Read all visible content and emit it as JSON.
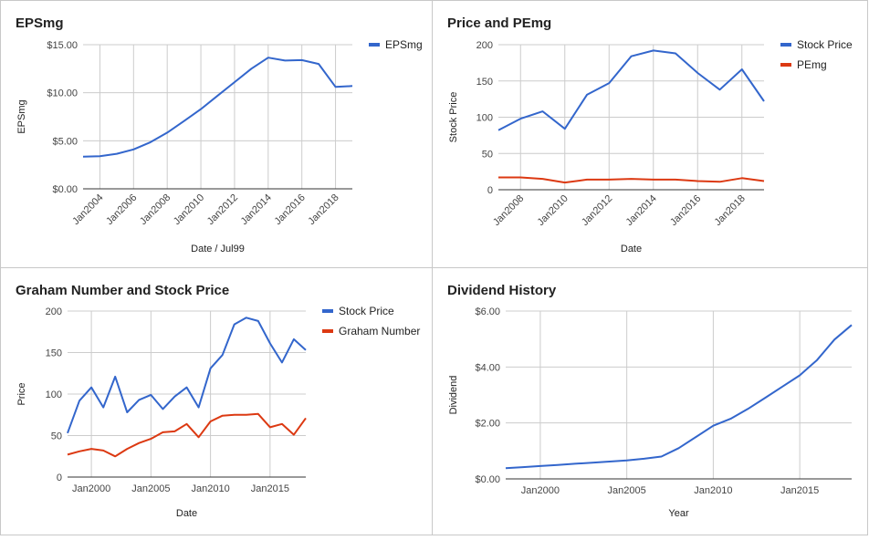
{
  "charts": [
    {
      "id": "p1",
      "type": "line",
      "title": "EPSmg",
      "xlabel": "Date / Jul99",
      "ylabel": "EPSmg",
      "x": [
        2003,
        2004,
        2005,
        2006,
        2007,
        2008,
        2009,
        2010,
        2011,
        2012,
        2013,
        2014,
        2015,
        2016,
        2017,
        2018,
        2019
      ],
      "series": [
        {
          "name": "EPSmg",
          "color": "#3366cc",
          "values": [
            3.35,
            3.4,
            3.65,
            4.1,
            4.85,
            5.85,
            7.05,
            8.3,
            9.7,
            11.1,
            12.5,
            13.65,
            13.35,
            13.4,
            13.0,
            10.6,
            10.7
          ]
        }
      ],
      "xlim": [
        2003,
        2019
      ],
      "ylim": [
        0,
        15
      ],
      "yticks": [
        0,
        5,
        10,
        15
      ],
      "ytick_labels": [
        "$0.00",
        "$5.00",
        "$10.00",
        "$15.00"
      ],
      "xticks": [
        2004,
        2006,
        2008,
        2010,
        2012,
        2014,
        2016,
        2018
      ],
      "xtick_labels": [
        "Jan2004",
        "Jan2006",
        "Jan2008",
        "Jan2010",
        "Jan2012",
        "Jan2014",
        "Jan2016",
        "Jan2018"
      ],
      "grid": true,
      "legend": "right"
    },
    {
      "id": "p2",
      "type": "line",
      "title": "Price and PEmg",
      "xlabel": "Date",
      "ylabel": "Stock Price",
      "x": [
        2007,
        2008,
        2009,
        2010,
        2011,
        2012,
        2013,
        2014,
        2015,
        2016,
        2017,
        2018,
        2019
      ],
      "series": [
        {
          "name": "Stock Price",
          "color": "#3366cc",
          "values": [
            82,
            98,
            108,
            84,
            131,
            147,
            184,
            192,
            188,
            161,
            138,
            166,
            122
          ]
        },
        {
          "name": "PEmg",
          "color": "#dc3912",
          "values": [
            17,
            17,
            15,
            10,
            14,
            14,
            15,
            14,
            14,
            12,
            11,
            16,
            12
          ]
        }
      ],
      "xlim": [
        2007,
        2019
      ],
      "ylim": [
        0,
        200
      ],
      "yticks": [
        0,
        50,
        100,
        150,
        200
      ],
      "ytick_labels": [
        "0",
        "50",
        "100",
        "150",
        "200"
      ],
      "xticks": [
        2008,
        2010,
        2012,
        2014,
        2016,
        2018
      ],
      "xtick_labels": [
        "Jan2008",
        "Jan2010",
        "Jan2012",
        "Jan2014",
        "Jan2016",
        "Jan2018"
      ],
      "grid": true,
      "legend": "right"
    },
    {
      "id": "p3",
      "type": "line",
      "title": "Graham Number and Stock Price",
      "xlabel": "Date",
      "ylabel": "Price",
      "x": [
        1998,
        1999,
        2000,
        2001,
        2002,
        2003,
        2004,
        2005,
        2006,
        2007,
        2008,
        2009,
        2010,
        2011,
        2012,
        2013,
        2014,
        2015,
        2016,
        2017,
        2018
      ],
      "series": [
        {
          "name": "Stock Price",
          "color": "#3366cc",
          "values": [
            53,
            92,
            108,
            84,
            121,
            78,
            93,
            99,
            82,
            97,
            108,
            84,
            131,
            147,
            184,
            192,
            188,
            161,
            138,
            166,
            153
          ]
        },
        {
          "name": "Graham Number",
          "color": "#dc3912",
          "values": [
            27,
            31,
            34,
            32,
            25,
            34,
            41,
            46,
            54,
            55,
            64,
            48,
            67,
            74,
            75,
            75,
            76,
            60,
            64,
            51,
            71
          ]
        }
      ],
      "xlim": [
        1998,
        2018
      ],
      "ylim": [
        0,
        200
      ],
      "yticks": [
        0,
        50,
        100,
        150,
        200
      ],
      "ytick_labels": [
        "0",
        "50",
        "100",
        "150",
        "200"
      ],
      "xticks": [
        2000,
        2005,
        2010,
        2015
      ],
      "xtick_labels": [
        "Jan2000",
        "Jan2005",
        "Jan2010",
        "Jan2015"
      ],
      "grid": true,
      "legend": "right"
    },
    {
      "id": "p4",
      "type": "line",
      "title": "Dividend History",
      "xlabel": "Year",
      "ylabel": "Dividend",
      "x": [
        1998,
        1999,
        2000,
        2001,
        2002,
        2003,
        2004,
        2005,
        2006,
        2007,
        2008,
        2009,
        2010,
        2011,
        2012,
        2013,
        2014,
        2015,
        2016,
        2017,
        2018
      ],
      "series": [
        {
          "name": "Dividend",
          "color": "#3366cc",
          "values": [
            0.38,
            0.42,
            0.46,
            0.5,
            0.54,
            0.58,
            0.62,
            0.66,
            0.72,
            0.8,
            1.1,
            1.5,
            1.9,
            2.15,
            2.5,
            2.9,
            3.3,
            3.7,
            4.25,
            4.98,
            5.5
          ]
        }
      ],
      "xlim": [
        1998,
        2018
      ],
      "ylim": [
        0,
        6
      ],
      "yticks": [
        0,
        2,
        4,
        6
      ],
      "ytick_labels": [
        "$0.00",
        "$2.00",
        "$4.00",
        "$6.00"
      ],
      "xticks": [
        2000,
        2005,
        2010,
        2015
      ],
      "xtick_labels": [
        "Jan2000",
        "Jan2005",
        "Jan2010",
        "Jan2015"
      ],
      "grid": true,
      "legend": "none"
    }
  ]
}
